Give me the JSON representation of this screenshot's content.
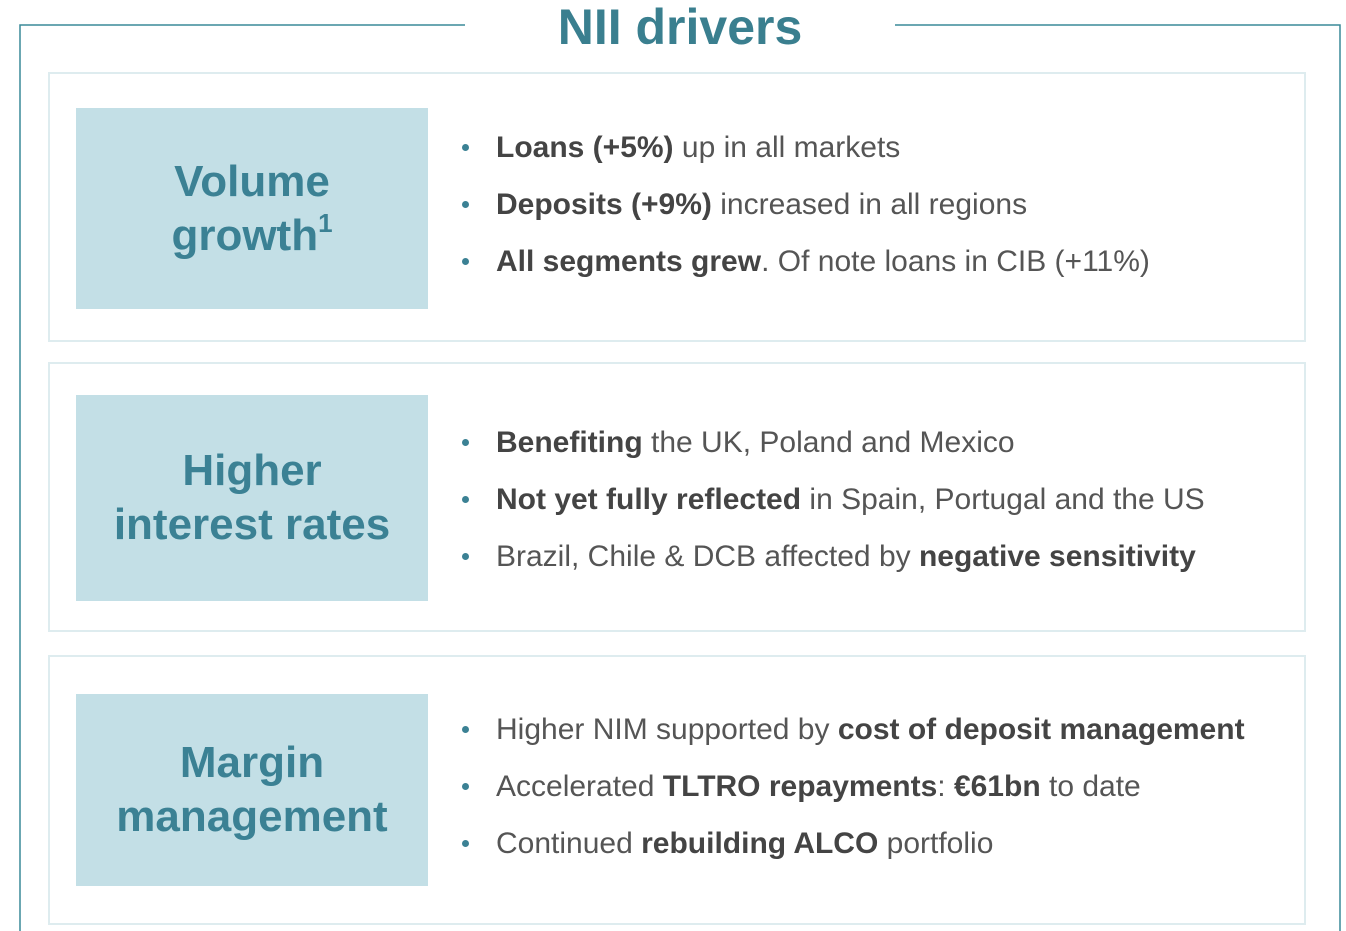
{
  "title": "NII drivers",
  "sections": [
    {
      "label": [
        "Volume",
        "growth"
      ],
      "label_sup": "1",
      "bullets": [
        [
          {
            "text": "Loans (+5%)",
            "bold": true
          },
          {
            "text": " up in all markets",
            "bold": false
          }
        ],
        [
          {
            "text": "Deposits (+9%)",
            "bold": true
          },
          {
            "text": " increased in all regions",
            "bold": false
          }
        ],
        [
          {
            "text": "All segments grew",
            "bold": true
          },
          {
            "text": ". Of note loans in CIB (+11%)",
            "bold": false
          }
        ]
      ]
    },
    {
      "label": [
        "Higher",
        "interest rates"
      ],
      "bullets": [
        [
          {
            "text": "Benefiting",
            "bold": true
          },
          {
            "text": " the UK, Poland and Mexico",
            "bold": false
          }
        ],
        [
          {
            "text": "Not yet fully reflected",
            "bold": true
          },
          {
            "text": " in Spain, Portugal and the US",
            "bold": false
          }
        ],
        [
          {
            "text": "Brazil, Chile & DCB affected by ",
            "bold": false
          },
          {
            "text": "negative sensitivity",
            "bold": true
          }
        ]
      ]
    },
    {
      "label": [
        "Margin",
        "management"
      ],
      "bullets": [
        [
          {
            "text": "Higher NIM supported by ",
            "bold": false
          },
          {
            "text": "cost of deposit management",
            "bold": true
          }
        ],
        [
          {
            "text": "Accelerated ",
            "bold": false
          },
          {
            "text": "TLTRO repayments",
            "bold": true
          },
          {
            "text": ": ",
            "bold": false
          },
          {
            "text": "€61bn",
            "bold": true
          },
          {
            "text": " to date",
            "bold": false
          }
        ],
        [
          {
            "text": "Continued ",
            "bold": false
          },
          {
            "text": "rebuilding ALCO",
            "bold": true
          },
          {
            "text": " portfolio",
            "bold": false
          }
        ]
      ]
    }
  ]
}
